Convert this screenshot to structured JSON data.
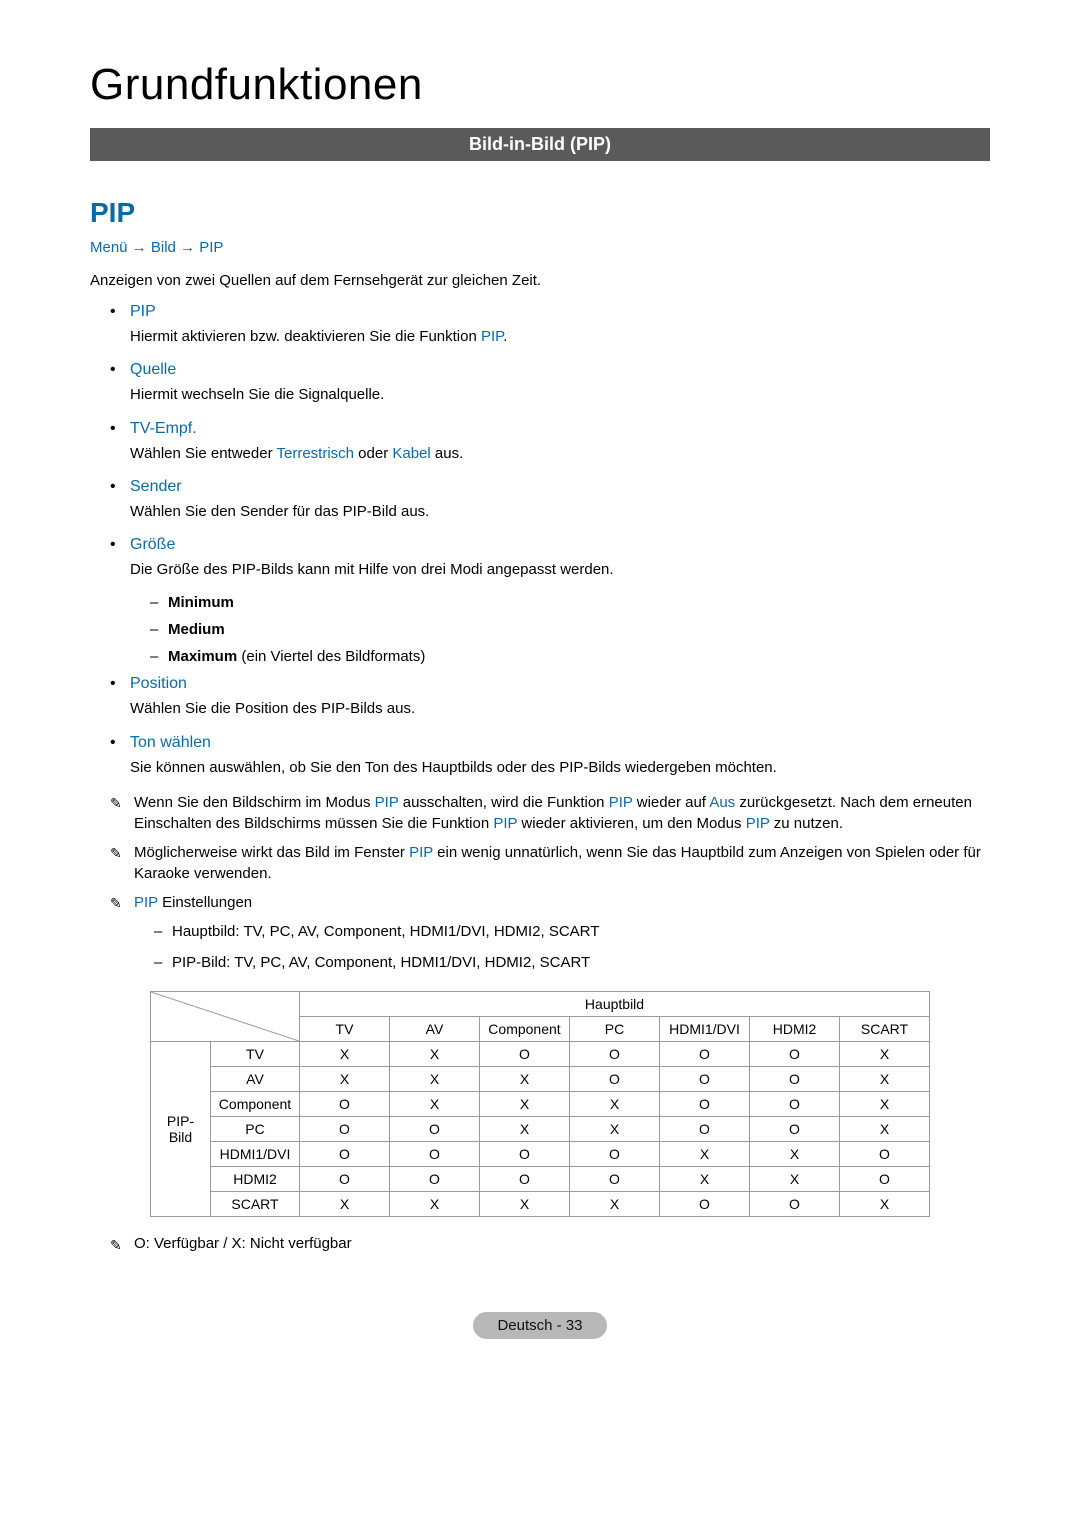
{
  "page_title": "Grundfunktionen",
  "banner": "Bild-in-Bild (PIP)",
  "section_heading": "PIP",
  "breadcrumb": {
    "a": "Menü",
    "b": "Bild",
    "c": "PIP",
    "arrow": "→"
  },
  "intro": "Anzeigen von zwei Quellen auf dem Fernsehgerät zur gleichen Zeit.",
  "colors": {
    "accent": "#0a6aa6",
    "banner_bg": "#5a5a5a",
    "banner_fg": "#ffffff",
    "pill_bg": "#b8b8b8",
    "border": "#999999"
  },
  "items": [
    {
      "term": "PIP",
      "desc_pre": "Hiermit aktivieren bzw. deaktivieren Sie die Funktion ",
      "desc_accent": "PIP",
      "desc_post": "."
    },
    {
      "term": "Quelle",
      "desc_pre": "Hiermit wechseln Sie die Signalquelle.",
      "desc_accent": "",
      "desc_post": ""
    },
    {
      "term": "TV-Empf.",
      "desc_pre": "Wählen Sie entweder ",
      "desc_accent": "Terrestrisch",
      "desc_mid": " oder ",
      "desc_accent2": "Kabel",
      "desc_post": " aus."
    },
    {
      "term": "Sender",
      "desc_pre": "Wählen Sie den Sender für das PIP-Bild aus.",
      "desc_accent": "",
      "desc_post": ""
    },
    {
      "term": "Größe",
      "desc_pre": "Die Größe des PIP-Bilds kann mit Hilfe von drei Modi angepasst werden.",
      "desc_accent": "",
      "desc_post": "",
      "sizes": [
        {
          "label": "Minimum",
          "extra": ""
        },
        {
          "label": "Medium",
          "extra": ""
        },
        {
          "label": "Maximum",
          "extra": " (ein Viertel des Bildformats)"
        }
      ]
    },
    {
      "term": "Position",
      "desc_pre": "Wählen Sie die Position des PIP-Bilds aus.",
      "desc_accent": "",
      "desc_post": ""
    },
    {
      "term": "Ton wählen",
      "desc_pre": "Sie können auswählen, ob Sie den Ton des Hauptbilds oder des PIP-Bilds wiedergeben möchten.",
      "desc_accent": "",
      "desc_post": ""
    }
  ],
  "notes": [
    {
      "parts": [
        {
          "t": "Wenn Sie den Bildschirm im Modus "
        },
        {
          "t": "PIP",
          "a": true
        },
        {
          "t": " ausschalten, wird die Funktion "
        },
        {
          "t": "PIP",
          "a": true
        },
        {
          "t": " wieder auf "
        },
        {
          "t": "Aus",
          "a": true
        },
        {
          "t": " zurückgesetzt. Nach dem erneuten Einschalten des Bildschirms müssen Sie die Funktion "
        },
        {
          "t": "PIP",
          "a": true
        },
        {
          "t": " wieder aktivieren, um den Modus "
        },
        {
          "t": "PIP",
          "a": true
        },
        {
          "t": " zu nutzen."
        }
      ]
    },
    {
      "parts": [
        {
          "t": "Möglicherweise wirkt das Bild im Fenster "
        },
        {
          "t": "PIP",
          "a": true
        },
        {
          "t": " ein wenig unnatürlich, wenn Sie das Hauptbild zum Anzeigen von Spielen oder für Karaoke verwenden."
        }
      ]
    }
  ],
  "settings": {
    "heading_accent": "PIP",
    "heading_rest": " Einstellungen",
    "lines": [
      "Hauptbild: TV, PC, AV, Component, HDMI1/DVI, HDMI2, SCART",
      "PIP-Bild: TV, PC, AV, Component, HDMI1/DVI, HDMI2, SCART"
    ]
  },
  "table": {
    "top_header": "Hauptbild",
    "side_header": "PIP-Bild",
    "columns": [
      "TV",
      "AV",
      "Component",
      "PC",
      "HDMI1/DVI",
      "HDMI2",
      "SCART"
    ],
    "row_labels": [
      "TV",
      "AV",
      "Component",
      "PC",
      "HDMI1/DVI",
      "HDMI2",
      "SCART"
    ],
    "cells": [
      [
        "X",
        "X",
        "O",
        "O",
        "O",
        "O",
        "X"
      ],
      [
        "X",
        "X",
        "X",
        "O",
        "O",
        "O",
        "X"
      ],
      [
        "O",
        "X",
        "X",
        "X",
        "O",
        "O",
        "X"
      ],
      [
        "O",
        "O",
        "X",
        "X",
        "O",
        "O",
        "X"
      ],
      [
        "O",
        "O",
        "O",
        "O",
        "X",
        "X",
        "O"
      ],
      [
        "O",
        "O",
        "O",
        "O",
        "X",
        "X",
        "O"
      ],
      [
        "X",
        "X",
        "X",
        "X",
        "O",
        "O",
        "X"
      ]
    ]
  },
  "legend": "O: Verfügbar / X: Nicht verfügbar",
  "footer": "Deutsch - 33"
}
